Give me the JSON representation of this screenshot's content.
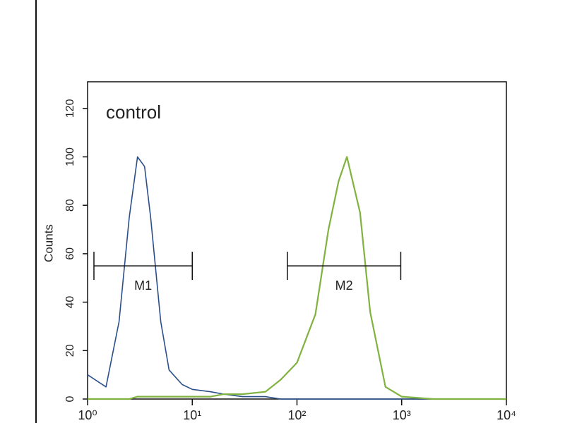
{
  "chart_data": {
    "type": "line",
    "annotation": "control",
    "ylabel": "Counts",
    "x_scale": "log",
    "x": [
      1,
      1.5,
      2,
      2.5,
      3,
      3.5,
      4,
      5,
      6,
      8,
      10,
      15,
      20,
      30,
      50,
      70,
      100,
      150,
      200,
      250,
      300,
      400,
      500,
      700,
      1000,
      2000,
      5000,
      10000
    ],
    "series": [
      {
        "color": "#2b4f8a",
        "values": [
          10,
          5,
          32,
          75,
          100,
          96,
          75,
          32,
          12,
          6,
          4,
          3,
          2,
          1,
          1,
          0,
          0,
          0,
          0,
          0,
          0,
          0,
          0,
          0,
          0,
          0,
          0,
          0
        ]
      },
      {
        "color": "#7fb23f",
        "values": [
          0,
          0,
          0,
          0,
          1,
          1,
          1,
          1,
          1,
          1,
          1,
          1,
          2,
          2,
          3,
          8,
          15,
          35,
          70,
          90,
          100,
          77,
          36,
          5,
          1,
          0,
          0,
          0
        ]
      }
    ],
    "markers": [
      {
        "label": "M1",
        "x": [
          1.15,
          10
        ],
        "y": 55
      },
      {
        "label": "M2",
        "x": [
          81,
          980
        ],
        "y": 55
      }
    ],
    "xlim": [
      1,
      10000
    ],
    "xticks": [
      {
        "value": 1,
        "label": "10⁰"
      },
      {
        "value": 10,
        "label": "10¹"
      },
      {
        "value": 100,
        "label": "10²"
      },
      {
        "value": 1000,
        "label": "10³"
      },
      {
        "value": 10000,
        "label": "10⁴"
      }
    ],
    "ylim": [
      0,
      131
    ],
    "yticks": [
      0,
      20,
      40,
      60,
      80,
      100,
      120
    ]
  }
}
